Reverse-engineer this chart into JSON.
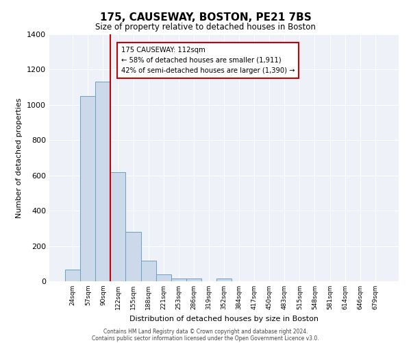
{
  "title": "175, CAUSEWAY, BOSTON, PE21 7BS",
  "subtitle": "Size of property relative to detached houses in Boston",
  "xlabel": "Distribution of detached houses by size in Boston",
  "ylabel": "Number of detached properties",
  "bar_color": "#ccd9ea",
  "bar_edge_color": "#6a9fc0",
  "categories": [
    "24sqm",
    "57sqm",
    "90sqm",
    "122sqm",
    "155sqm",
    "188sqm",
    "221sqm",
    "253sqm",
    "286sqm",
    "319sqm",
    "352sqm",
    "384sqm",
    "417sqm",
    "450sqm",
    "483sqm",
    "515sqm",
    "548sqm",
    "581sqm",
    "614sqm",
    "646sqm",
    "679sqm"
  ],
  "values": [
    65,
    1050,
    1130,
    620,
    280,
    115,
    40,
    15,
    15,
    0,
    15,
    0,
    0,
    0,
    0,
    0,
    0,
    0,
    0,
    0,
    0
  ],
  "ylim": [
    0,
    1400
  ],
  "yticks": [
    0,
    200,
    400,
    600,
    800,
    1000,
    1200,
    1400
  ],
  "vline_x_index": 3,
  "annotation_line1": "175 CAUSEWAY: 112sqm",
  "annotation_line2": "← 58% of detached houses are smaller (1,911)",
  "annotation_line3": "42% of semi-detached houses are larger (1,390) →",
  "annotation_box_color": "#ffffff",
  "annotation_box_edge": "#cc0000",
  "vline_color": "#cc0000",
  "footer1": "Contains HM Land Registry data © Crown copyright and database right 2024.",
  "footer2": "Contains public sector information licensed under the Open Government Licence v3.0.",
  "bg_color": "#eef2f8",
  "grid_color": "#ffffff"
}
